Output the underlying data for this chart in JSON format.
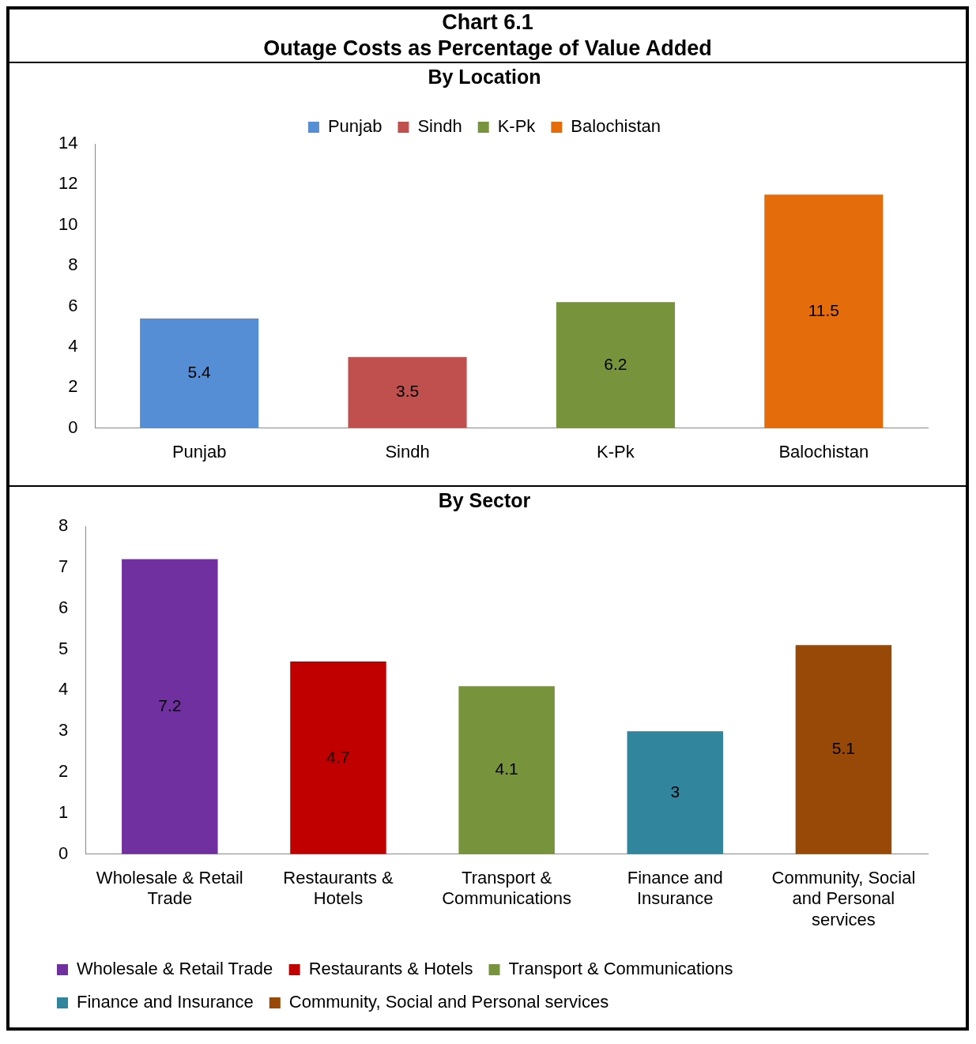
{
  "chart_data": [
    {
      "type": "bar",
      "title": "Chart 6.1\nOutage Costs as Percentage of Value Added",
      "subtitle": "By Location",
      "categories": [
        "Punjab",
        "Sindh",
        "K-Pk",
        "Balochistan"
      ],
      "series": [
        {
          "name": "Punjab",
          "color": "#558ed5",
          "values": [
            5.4,
            null,
            null,
            null
          ]
        },
        {
          "name": "Sindh",
          "color": "#c0504d",
          "values": [
            null,
            3.5,
            null,
            null
          ]
        },
        {
          "name": "K-Pk",
          "color": "#77933c",
          "values": [
            null,
            null,
            6.2,
            null
          ]
        },
        {
          "name": "Balochistan",
          "color": "#e46c0a",
          "values": [
            null,
            null,
            null,
            11.5
          ]
        }
      ],
      "ylim": [
        0,
        14
      ],
      "yticks": [
        0,
        2,
        4,
        6,
        8,
        10,
        12,
        14
      ],
      "legend": "top",
      "data_labels": true
    },
    {
      "type": "bar",
      "title": "By Sector",
      "categories": [
        "Wholesale & Retail Trade",
        "Restaurants & Hotels",
        "Transport & Communications",
        "Finance and Insurance",
        "Community, Social and Personal services"
      ],
      "series": [
        {
          "name": "Wholesale & Retail Trade",
          "color": "#7030a0",
          "values": [
            7.2,
            null,
            null,
            null,
            null
          ]
        },
        {
          "name": "Restaurants & Hotels",
          "color": "#c00000",
          "values": [
            null,
            4.7,
            null,
            null,
            null
          ]
        },
        {
          "name": "Transport & Communications",
          "color": "#77933c",
          "values": [
            null,
            null,
            4.1,
            null,
            null
          ]
        },
        {
          "name": "Finance and Insurance",
          "color": "#31859c",
          "values": [
            null,
            null,
            null,
            3,
            null
          ]
        },
        {
          "name": "Community, Social and Personal services",
          "color": "#984807",
          "values": [
            null,
            null,
            null,
            null,
            5.1
          ]
        }
      ],
      "ylim": [
        0,
        8
      ],
      "yticks": [
        0,
        1,
        2,
        3,
        4,
        5,
        6,
        7,
        8
      ],
      "legend": "bottom",
      "data_labels": true
    }
  ]
}
